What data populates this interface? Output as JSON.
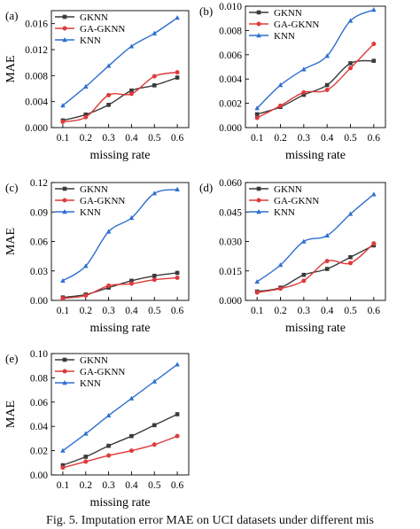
{
  "caption": "Fig. 5. Imputation error MAE on UCI datasets under different mis",
  "colors": {
    "GKNN": "#3a3a3a",
    "GA-GKNN": "#e03a3a",
    "KNN": "#2f6fd0",
    "axis": "#000000"
  },
  "chart_data": [
    {
      "type": "line",
      "panel": "(a)",
      "xlabel": "missing rate",
      "ylabel": "MAE",
      "x": [
        0.1,
        0.2,
        0.3,
        0.4,
        0.5,
        0.6
      ],
      "xticks": [
        "0.1",
        "0.2",
        "0.3",
        "0.4",
        "0.5",
        "0.6"
      ],
      "xlim": [
        0.05,
        0.65
      ],
      "ylim": [
        0,
        0.018
      ],
      "yticks": [
        "0.000",
        "0.004",
        "0.008",
        "0.012",
        "0.016"
      ],
      "ytick_values": [
        0,
        0.004,
        0.008,
        0.012,
        0.016
      ],
      "legend_position": "top-left",
      "series": [
        {
          "name": "GKNN",
          "values": [
            0.0011,
            0.002,
            0.0035,
            0.0057,
            0.0065,
            0.0077
          ]
        },
        {
          "name": "GA-GKNN",
          "values": [
            0.0009,
            0.0016,
            0.005,
            0.0052,
            0.0079,
            0.0085
          ]
        },
        {
          "name": "KNN",
          "values": [
            0.0034,
            0.0063,
            0.0095,
            0.0125,
            0.0145,
            0.0169
          ]
        }
      ]
    },
    {
      "type": "line",
      "panel": "(b)",
      "xlabel": "missing rate",
      "ylabel": "",
      "x": [
        0.1,
        0.2,
        0.3,
        0.4,
        0.5,
        0.6
      ],
      "xticks": [
        "0.1",
        "0.2",
        "0.3",
        "0.4",
        "0.5",
        "0.6"
      ],
      "xlim": [
        0.05,
        0.65
      ],
      "ylim": [
        0,
        0.01
      ],
      "yticks": [
        "0.000",
        "0.002",
        "0.004",
        "0.006",
        "0.008",
        "0.010"
      ],
      "ytick_values": [
        0,
        0.002,
        0.004,
        0.006,
        0.008,
        0.01
      ],
      "legend_position": "top-left",
      "series": [
        {
          "name": "GKNN",
          "values": [
            0.0011,
            0.0017,
            0.0027,
            0.0035,
            0.0053,
            0.0055
          ]
        },
        {
          "name": "GA-GKNN",
          "values": [
            0.0008,
            0.0018,
            0.0029,
            0.0031,
            0.0049,
            0.0069
          ]
        },
        {
          "name": "KNN",
          "values": [
            0.0016,
            0.0035,
            0.0048,
            0.0059,
            0.0088,
            0.0097
          ]
        }
      ]
    },
    {
      "type": "line",
      "panel": "(c)",
      "xlabel": "missing rate",
      "ylabel": "MAE",
      "x": [
        0.1,
        0.2,
        0.3,
        0.4,
        0.5,
        0.6
      ],
      "xticks": [
        "0.1",
        "0.2",
        "0.3",
        "0.4",
        "0.5",
        "0.6"
      ],
      "xlim": [
        0.05,
        0.65
      ],
      "ylim": [
        0,
        0.12
      ],
      "yticks": [
        "0.00",
        "0.03",
        "0.06",
        "0.09",
        "0.12"
      ],
      "ytick_values": [
        0,
        0.03,
        0.06,
        0.09,
        0.12
      ],
      "legend_position": "top-left",
      "series": [
        {
          "name": "GKNN",
          "values": [
            0.003,
            0.006,
            0.013,
            0.02,
            0.025,
            0.028
          ]
        },
        {
          "name": "GA-GKNN",
          "values": [
            0.002,
            0.005,
            0.015,
            0.017,
            0.021,
            0.023
          ]
        },
        {
          "name": "KNN",
          "values": [
            0.02,
            0.035,
            0.07,
            0.084,
            0.109,
            0.113
          ]
        }
      ]
    },
    {
      "type": "line",
      "panel": "(d)",
      "xlabel": "missing rate",
      "ylabel": "",
      "x": [
        0.1,
        0.2,
        0.3,
        0.4,
        0.5,
        0.6
      ],
      "xticks": [
        "0.1",
        "0.2",
        "0.3",
        "0.4",
        "0.5",
        "0.6"
      ],
      "xlim": [
        0.05,
        0.65
      ],
      "ylim": [
        0,
        0.06
      ],
      "yticks": [
        "0.000",
        "0.015",
        "0.030",
        "0.045",
        "0.060"
      ],
      "ytick_values": [
        0,
        0.015,
        0.03,
        0.045,
        0.06
      ],
      "legend_position": "top-left",
      "series": [
        {
          "name": "GKNN",
          "values": [
            0.0045,
            0.0065,
            0.013,
            0.016,
            0.022,
            0.028
          ]
        },
        {
          "name": "GA-GKNN",
          "values": [
            0.004,
            0.006,
            0.01,
            0.02,
            0.019,
            0.029
          ]
        },
        {
          "name": "KNN",
          "values": [
            0.0095,
            0.018,
            0.03,
            0.033,
            0.044,
            0.054
          ]
        }
      ]
    },
    {
      "type": "line",
      "panel": "(e)",
      "xlabel": "missing rate",
      "ylabel": "MAE",
      "x": [
        0.1,
        0.2,
        0.3,
        0.4,
        0.5,
        0.6
      ],
      "xticks": [
        "0.1",
        "0.2",
        "0.3",
        "0.4",
        "0.5",
        "0.6"
      ],
      "xlim": [
        0.05,
        0.65
      ],
      "ylim": [
        0,
        0.1
      ],
      "yticks": [
        "0.00",
        "0.02",
        "0.04",
        "0.06",
        "0.08",
        "0.10"
      ],
      "ytick_values": [
        0,
        0.02,
        0.04,
        0.06,
        0.08,
        0.1
      ],
      "legend_position": "top-left",
      "series": [
        {
          "name": "GKNN",
          "values": [
            0.008,
            0.015,
            0.024,
            0.032,
            0.041,
            0.05
          ]
        },
        {
          "name": "GA-GKNN",
          "values": [
            0.006,
            0.011,
            0.016,
            0.02,
            0.025,
            0.032
          ]
        },
        {
          "name": "KNN",
          "values": [
            0.02,
            0.034,
            0.049,
            0.063,
            0.077,
            0.091
          ]
        }
      ]
    }
  ]
}
